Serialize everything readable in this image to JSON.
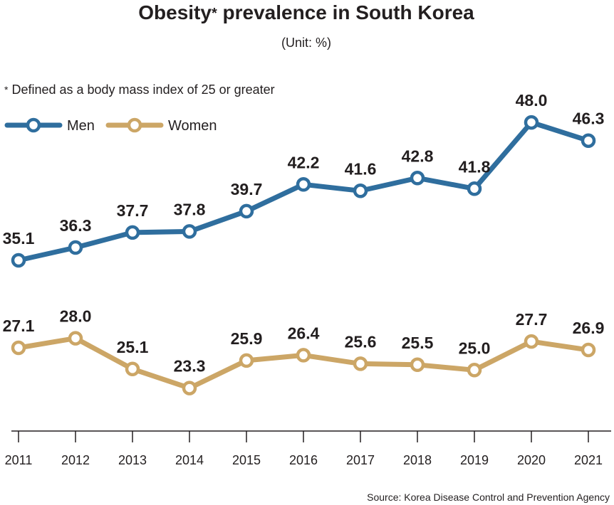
{
  "header": {
    "title": "Obesity",
    "title_mark": "*",
    "title_rest": " prevalence in South Korea",
    "unit": "(Unit: %)"
  },
  "footnote": {
    "mark": "*",
    "text": " Defined as a body mass index of 25 or greater"
  },
  "source": "Source: Korea Disease Control and Prevention Agency",
  "chart_data": {
    "type": "line",
    "title": "Obesity* prevalence in South Korea",
    "xlabel": "",
    "ylabel": "",
    "x": [
      "2011",
      "2012",
      "2013",
      "2014",
      "2015",
      "2016",
      "2017",
      "2018",
      "2019",
      "2020",
      "2021"
    ],
    "series": [
      {
        "name": "Men",
        "color": "#2f6e9e",
        "values": [
          35.1,
          36.3,
          37.7,
          37.8,
          39.7,
          42.2,
          41.6,
          42.8,
          41.8,
          48.0,
          46.3
        ],
        "labels": [
          "35.1",
          "36.3",
          "37.7",
          "37.8",
          "39.7",
          "42.2",
          "41.6",
          "42.8",
          "41.8",
          "48.0",
          "46.3"
        ]
      },
      {
        "name": "Women",
        "color": "#cca666",
        "values": [
          27.1,
          28.0,
          25.1,
          23.3,
          25.9,
          26.4,
          25.6,
          25.5,
          25.0,
          27.7,
          26.9
        ],
        "labels": [
          "27.1",
          "28.0",
          "25.1",
          "23.3",
          "25.9",
          "26.4",
          "25.6",
          "25.5",
          "25.0",
          "27.7",
          "26.9"
        ]
      }
    ],
    "legend": "top-left",
    "grid": false
  }
}
